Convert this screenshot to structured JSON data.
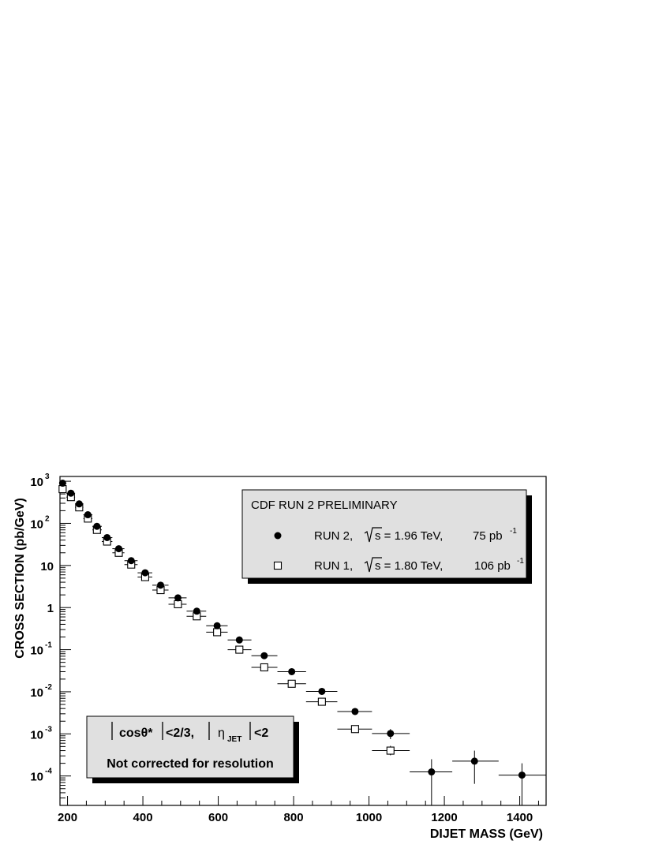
{
  "chart_data": {
    "type": "scatter",
    "x_label": "DIJET MASS (GeV)",
    "y_label": "CROSS  SECTION (pb/GeV)",
    "xlim": [
      180,
      1470
    ],
    "ylim": [
      2e-05,
      1300
    ],
    "yscale": "log",
    "x_ticks": [
      200,
      400,
      600,
      800,
      1000,
      1200,
      1400
    ],
    "y_ticks": [
      {
        "value": 1000,
        "base": "10",
        "exp": "3"
      },
      {
        "value": 100,
        "base": "10",
        "exp": "2"
      },
      {
        "value": 10,
        "base": "10",
        "exp": ""
      },
      {
        "value": 1,
        "base": "1",
        "exp": ""
      },
      {
        "value": 0.1,
        "base": "10",
        "exp": "-1"
      },
      {
        "value": 0.01,
        "base": "10",
        "exp": "-2"
      },
      {
        "value": 0.001,
        "base": "10",
        "exp": "-3"
      },
      {
        "value": 0.0001,
        "base": "10",
        "exp": "-4"
      }
    ],
    "series": [
      {
        "name": "RUN 2",
        "marker": "filled-circle",
        "x": [
          187,
          209,
          231,
          254,
          278,
          305,
          336,
          369,
          406,
          447,
          493,
          543,
          597,
          656,
          722,
          795,
          875,
          963,
          1057,
          1166,
          1280,
          1406
        ],
        "x_lo": [
          178,
          197,
          220,
          242,
          266,
          291,
          319,
          351,
          386,
          425,
          468,
          516,
          568,
          625,
          688,
          757,
          833,
          916,
          1008,
          1108,
          1221,
          1344
        ],
        "x_hi": [
          197,
          220,
          242,
          266,
          291,
          319,
          351,
          386,
          425,
          468,
          516,
          568,
          625,
          688,
          757,
          833,
          916,
          1008,
          1108,
          1221,
          1344,
          1477
        ],
        "y": [
          900,
          520,
          290,
          160,
          85,
          46,
          25,
          13,
          6.7,
          3.4,
          1.7,
          0.82,
          0.37,
          0.17,
          0.072,
          0.03,
          0.0102,
          0.0034,
          0.00102,
          0.000125,
          0.000225,
          0.000105
        ],
        "y_lo": [
          900,
          520,
          290,
          160,
          85,
          46,
          25,
          13,
          6.7,
          3.4,
          1.7,
          0.82,
          0.37,
          0.17,
          0.072,
          0.03,
          0.0102,
          0.0034,
          0.00075,
          2e-05,
          6.5e-05,
          2e-05
        ],
        "y_hi": [
          900,
          520,
          290,
          160,
          85,
          46,
          25,
          13,
          6.7,
          3.4,
          1.7,
          0.82,
          0.37,
          0.17,
          0.072,
          0.03,
          0.0102,
          0.0034,
          0.0013,
          0.00025,
          0.0004,
          0.0002
        ]
      },
      {
        "name": "RUN 1",
        "marker": "open-square",
        "x": [
          187,
          209,
          231,
          254,
          278,
          305,
          336,
          369,
          406,
          447,
          493,
          543,
          597,
          656,
          722,
          795,
          875,
          963,
          1057
        ],
        "x_lo": [
          178,
          197,
          220,
          242,
          266,
          291,
          319,
          351,
          386,
          425,
          468,
          516,
          568,
          625,
          688,
          757,
          833,
          916,
          1008
        ],
        "x_hi": [
          197,
          220,
          242,
          266,
          291,
          319,
          351,
          386,
          425,
          468,
          516,
          568,
          625,
          688,
          757,
          833,
          916,
          1008,
          1108
        ],
        "y": [
          650,
          420,
          240,
          130,
          70,
          37,
          20,
          10.5,
          5.3,
          2.6,
          1.2,
          0.62,
          0.26,
          0.1,
          0.038,
          0.0155,
          0.0058,
          0.0013,
          0.0004
        ],
        "y_lo": [
          650,
          420,
          240,
          130,
          70,
          37,
          20,
          10.5,
          5.3,
          2.6,
          1.2,
          0.62,
          0.26,
          0.1,
          0.038,
          0.0155,
          0.0058,
          0.0011,
          0.00031
        ],
        "y_hi": [
          650,
          420,
          240,
          130,
          70,
          37,
          20,
          10.5,
          5.3,
          2.6,
          1.2,
          0.62,
          0.26,
          0.1,
          0.038,
          0.0155,
          0.0058,
          0.0015,
          0.00052
        ]
      }
    ],
    "legend": {
      "placement": "top-right",
      "title": "CDF RUN 2 PRELIMINARY",
      "entries": [
        {
          "run": "RUN 2,",
          "energy": "s = 1.96 TeV,",
          "lumi": "75 pb",
          "lumi_exp": "-1"
        },
        {
          "run": "RUN 1,",
          "energy": "s = 1.80 TeV,",
          "lumi": "106 pb",
          "lumi_exp": "-1"
        }
      ]
    },
    "annotation": {
      "cuts_prefix": "cosθ*",
      "cuts_middle": "<2/3,",
      "eta": "η",
      "eta_sub": "JET",
      "cuts_suffix": "<2",
      "note": "Not corrected for resolution"
    },
    "grid": false
  }
}
